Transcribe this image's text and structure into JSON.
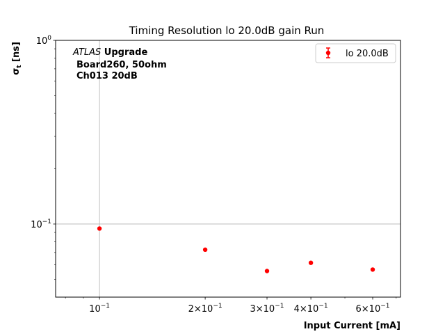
{
  "chart_data": {
    "type": "scatter",
    "title": "Timing Resolution lo 20.0dB gain Run",
    "xlabel": "Input Current [mA]",
    "ylabel_main": "σ",
    "ylabel_sub": "t",
    "ylabel_unit": " [ns]",
    "x_scale": "log",
    "y_scale": "log",
    "xlim": [
      0.075,
      0.72
    ],
    "ylim": [
      0.04,
      1.0
    ],
    "grid": true,
    "grid_lines": {
      "x": [
        0.1
      ],
      "y": [
        0.1
      ]
    },
    "x_ticks": [
      {
        "value": 0.1,
        "mant": "",
        "exp": "−1"
      },
      {
        "value": 0.2,
        "mant": "2×",
        "exp": "−1"
      },
      {
        "value": 0.3,
        "mant": "3×",
        "exp": "−1"
      },
      {
        "value": 0.4,
        "mant": "4×",
        "exp": "−1"
      },
      {
        "value": 0.6,
        "mant": "6×",
        "exp": "−1"
      }
    ],
    "x_minor_ticks": [
      0.08,
      0.09,
      0.5,
      0.7
    ],
    "y_ticks": [
      {
        "value": 1.0,
        "exp": "0"
      },
      {
        "value": 0.1,
        "exp": "−1"
      }
    ],
    "y_minor_ticks": [
      0.05,
      0.06,
      0.07,
      0.08,
      0.09,
      0.2,
      0.3,
      0.4,
      0.5,
      0.6,
      0.7,
      0.8,
      0.9
    ],
    "series": [
      {
        "name": "lo 20.0dB",
        "color": "#ff0000",
        "x": [
          0.1,
          0.2,
          0.3,
          0.4,
          0.6
        ],
        "y": [
          0.0945,
          0.0725,
          0.0555,
          0.0615,
          0.0565
        ]
      }
    ],
    "legend_position": "top-right",
    "annotation": {
      "italic": "ATLAS",
      "bold": " Upgrade",
      "line2": "Board260, 50ohm",
      "line3": "Ch013 20dB"
    }
  }
}
